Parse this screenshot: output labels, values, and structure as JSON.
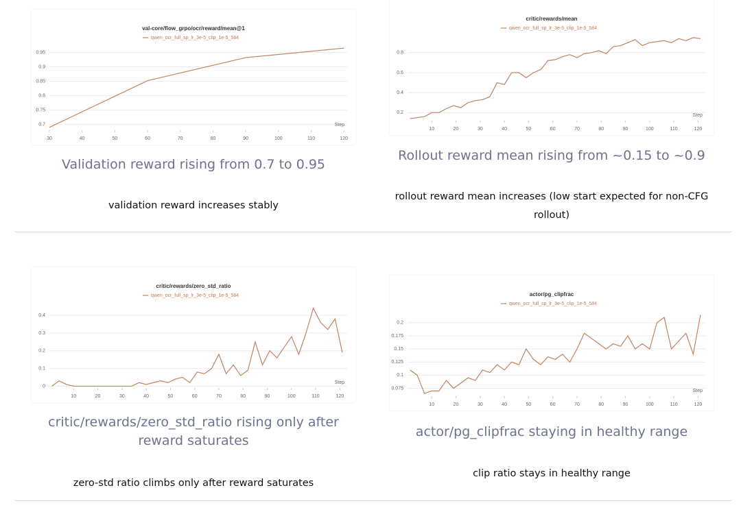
{
  "chart_data": [
    {
      "type": "line",
      "title": "val-core/flow_grpo/ocr/reward/mean@1",
      "xlabel": "Step",
      "x": [
        30,
        60,
        90,
        120
      ],
      "series": [
        {
          "name": "qwen_ocr_full_sp_lr_3e-5_clip_1e-5_584",
          "color": "#c0825f",
          "values": [
            0.69,
            0.852,
            0.932,
            0.965
          ]
        }
      ],
      "xlim": [
        30,
        121
      ],
      "ylim": [
        0.68,
        0.975
      ],
      "xticks": [
        30,
        40,
        50,
        60,
        70,
        80,
        90,
        100,
        110,
        120
      ],
      "yticks": [
        0.7,
        0.75,
        0.8,
        0.85,
        0.9,
        0.95
      ],
      "grid": true
    },
    {
      "type": "line",
      "title": "critic/rewards/mean",
      "xlabel": "Step",
      "x": [
        1,
        4,
        7,
        10,
        13,
        16,
        19,
        22,
        25,
        28,
        31,
        34,
        37,
        40,
        43,
        46,
        49,
        52,
        55,
        58,
        61,
        64,
        67,
        70,
        73,
        76,
        79,
        82,
        85,
        88,
        91,
        94,
        97,
        100,
        103,
        106,
        109,
        112,
        115,
        118,
        121
      ],
      "series": [
        {
          "name": "qwen_ocr_full_sp_lr_3e-5_clip_1e-5_584",
          "color": "#c0825f",
          "values": [
            0.14,
            0.15,
            0.16,
            0.2,
            0.2,
            0.24,
            0.27,
            0.25,
            0.3,
            0.32,
            0.33,
            0.36,
            0.5,
            0.48,
            0.6,
            0.6,
            0.55,
            0.6,
            0.63,
            0.72,
            0.73,
            0.76,
            0.78,
            0.75,
            0.79,
            0.8,
            0.82,
            0.79,
            0.86,
            0.87,
            0.9,
            0.93,
            0.87,
            0.9,
            0.91,
            0.92,
            0.9,
            0.94,
            0.92,
            0.95,
            0.94
          ]
        }
      ],
      "xlim": [
        0,
        123
      ],
      "ylim": [
        0.12,
        0.97
      ],
      "xticks": [
        10,
        20,
        30,
        40,
        50,
        60,
        70,
        80,
        90,
        100,
        110,
        120
      ],
      "yticks": [
        0.2,
        0.4,
        0.6,
        0.8
      ],
      "grid": true
    },
    {
      "type": "line",
      "title": "critic/rewards/zero_std_ratio",
      "xlabel": "Step",
      "x": [
        1,
        4,
        7,
        10,
        13,
        16,
        19,
        22,
        25,
        28,
        31,
        34,
        37,
        40,
        43,
        46,
        49,
        52,
        55,
        58,
        61,
        64,
        67,
        70,
        73,
        76,
        79,
        82,
        85,
        88,
        91,
        94,
        97,
        100,
        103,
        106,
        109,
        112,
        115,
        118,
        121
      ],
      "series": [
        {
          "name": "qwen_ocr_full_sp_lr_3e-5_clip_1e-5_584",
          "color": "#c0825f",
          "values": [
            0,
            0.03,
            0.01,
            0,
            0,
            0,
            0,
            0,
            0,
            0,
            0,
            0,
            0.02,
            0.01,
            0.02,
            0.03,
            0.02,
            0.04,
            0.05,
            0.02,
            0.08,
            0.07,
            0.1,
            0.18,
            0.07,
            0.12,
            0.06,
            0.09,
            0.25,
            0.12,
            0.2,
            0.16,
            0.22,
            0.28,
            0.18,
            0.3,
            0.44,
            0.36,
            0.32,
            0.38,
            0.19
          ]
        }
      ],
      "xlim": [
        0,
        123
      ],
      "ylim": [
        -0.01,
        0.47
      ],
      "xticks": [
        10,
        20,
        30,
        40,
        50,
        60,
        70,
        80,
        90,
        100,
        110,
        120
      ],
      "yticks": [
        0,
        0.1,
        0.2,
        0.3,
        0.4
      ],
      "grid": true
    },
    {
      "type": "line",
      "title": "actor/pg_clipfrac",
      "xlabel": "Step",
      "x": [
        1,
        4,
        7,
        10,
        13,
        16,
        19,
        22,
        25,
        28,
        31,
        34,
        37,
        40,
        43,
        46,
        49,
        52,
        55,
        58,
        61,
        64,
        67,
        70,
        73,
        76,
        79,
        82,
        85,
        88,
        91,
        94,
        97,
        100,
        103,
        106,
        109,
        112,
        115,
        118,
        121
      ],
      "series": [
        {
          "name": "qwen_ocr_full_sp_lr_3e-5_clip_1e-5_584",
          "color": "#c0825f",
          "values": [
            0.11,
            0.1,
            0.065,
            0.07,
            0.07,
            0.09,
            0.075,
            0.085,
            0.095,
            0.09,
            0.11,
            0.105,
            0.12,
            0.11,
            0.125,
            0.12,
            0.15,
            0.13,
            0.12,
            0.135,
            0.13,
            0.14,
            0.125,
            0.15,
            0.18,
            0.17,
            0.16,
            0.15,
            0.16,
            0.155,
            0.175,
            0.15,
            0.16,
            0.15,
            0.2,
            0.21,
            0.15,
            0.165,
            0.18,
            0.14,
            0.215
          ]
        }
      ],
      "xlim": [
        0,
        123
      ],
      "ylim": [
        0.06,
        0.222
      ],
      "xticks": [
        10,
        20,
        30,
        40,
        50,
        60,
        70,
        80,
        90,
        100,
        110,
        120
      ],
      "yticks": [
        0.075,
        0.1,
        0.125,
        0.15,
        0.175,
        0.2
      ],
      "grid": true
    }
  ],
  "captions": [
    "Validation reward rising from 0.7 to 0.95",
    "Rollout reward mean rising from ~0.15 to ~0.9",
    "critic/rewards/zero_std_ratio rising only after reward saturates",
    "actor/pg_clipfrac staying in healthy range"
  ],
  "notes": [
    "validation reward increases stably",
    "rollout reward mean increases (low start expected for non-CFG rollout)",
    "zero-std ratio climbs only after reward saturates",
    "clip ratio stays in healthy range"
  ]
}
